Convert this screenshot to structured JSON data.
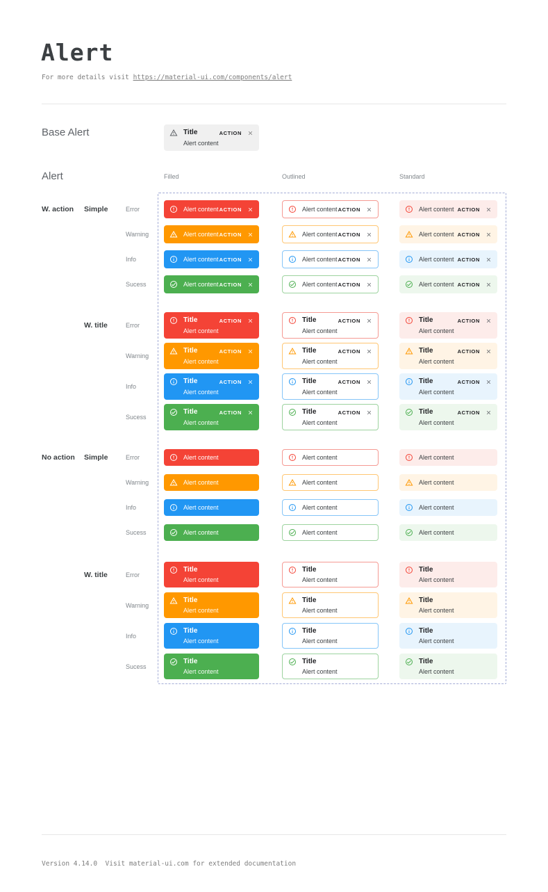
{
  "page": {
    "title": "Alert",
    "subtitle_prefix": "For more details visit ",
    "subtitle_link": "https://material-ui.com/components/alert",
    "footer": "Version 4.14.0  Visit material-ui.com for extended documentation"
  },
  "base_alert": {
    "section_label": "Base Alert",
    "title": "Title",
    "content": "Alert content",
    "action_label": "ACTION"
  },
  "alert_section": {
    "label": "Alert",
    "columns": [
      "Filled",
      "Outlined",
      "Standard"
    ],
    "variants": [
      "filled",
      "outlined",
      "standard"
    ],
    "groups": [
      {
        "action_label": "W. action",
        "style_label": "Simple",
        "with_action": true,
        "with_title": false
      },
      {
        "action_label": "",
        "style_label": "W. title",
        "with_action": true,
        "with_title": true
      },
      {
        "action_label": "No action",
        "style_label": "Simple",
        "with_action": false,
        "with_title": false
      },
      {
        "action_label": "",
        "style_label": "W. title",
        "with_action": false,
        "with_title": true
      }
    ],
    "severities": [
      {
        "key": "error",
        "label": "Error",
        "icon": "error-circle-icon"
      },
      {
        "key": "warning",
        "label": "Warning",
        "icon": "warning-triangle-icon"
      },
      {
        "key": "info",
        "label": "Info",
        "icon": "info-circle-icon"
      },
      {
        "key": "success",
        "label": "Sucess",
        "icon": "success-check-icon"
      }
    ],
    "card": {
      "title": "Title",
      "content": "Alert content",
      "action_label": "ACTION"
    }
  },
  "colors": {
    "error": {
      "main": "#f44336",
      "border": "#f59a93",
      "standard_bg": "#fdecea"
    },
    "warning": {
      "main": "#ff9800",
      "border": "#ffc673",
      "standard_bg": "#fff4e5"
    },
    "info": {
      "main": "#2196f3",
      "border": "#85c5f8",
      "standard_bg": "#e8f4fd"
    },
    "success": {
      "main": "#4caf50",
      "border": "#9dd39f",
      "standard_bg": "#edf7ed"
    },
    "base_bg": "#f0f0f0",
    "frame_dash": "#a3acd6",
    "text_dark": "#202124",
    "text_body": "#3c4043",
    "text_muted": "#80868b",
    "heading": "#5f6368"
  }
}
